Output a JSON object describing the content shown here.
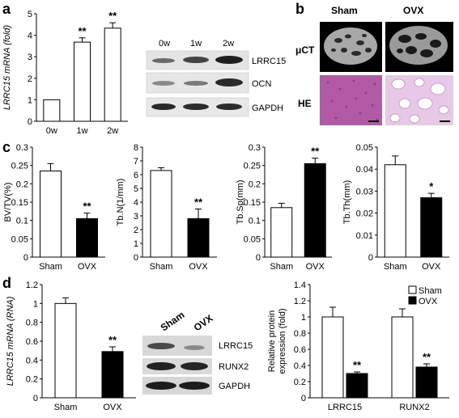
{
  "panel_letters": {
    "a": "a",
    "b": "b",
    "c": "c",
    "d": "d"
  },
  "panel_b": {
    "columns": [
      "Sham",
      "OVX"
    ],
    "rows": [
      "μCT",
      "HE"
    ]
  },
  "blot_a": {
    "timepoints": [
      "0w",
      "1w",
      "2w"
    ],
    "proteins": [
      "LRRC15",
      "OCN",
      "GAPDH"
    ]
  },
  "blot_d": {
    "lanes": [
      "Sham",
      "OVX"
    ],
    "proteins": [
      "LRRC15",
      "RUNX2",
      "GAPDH"
    ]
  },
  "colors": {
    "white_bar": "#ffffff",
    "black_bar": "#000000",
    "he_tissue": "#b25aa6",
    "he_background": "#e7c8e7"
  },
  "chart_data": [
    {
      "id": "a",
      "type": "bar",
      "categories": [
        "0w",
        "1w",
        "2w"
      ],
      "values": [
        1.0,
        3.68,
        4.33
      ],
      "errors": [
        0.0,
        0.2,
        0.25
      ],
      "significance": [
        "",
        "**",
        "**"
      ],
      "ylabel": "LRRC15 mRNA (fold)",
      "ylim": [
        0,
        5
      ],
      "yticks": [
        0,
        1,
        2,
        3,
        4,
        5
      ],
      "bar_colors": [
        "#ffffff",
        "#ffffff",
        "#ffffff"
      ]
    },
    {
      "id": "c1",
      "type": "bar",
      "categories": [
        "Sham",
        "OVX"
      ],
      "values": [
        0.235,
        0.105
      ],
      "errors": [
        0.02,
        0.015
      ],
      "significance": [
        "",
        "**"
      ],
      "ylabel": "BV/TV(%)",
      "ylim": [
        0,
        0.3
      ],
      "yticks": [
        0,
        0.05,
        0.1,
        0.15,
        0.2,
        0.25,
        0.3
      ],
      "bar_colors": [
        "#ffffff",
        "#000000"
      ]
    },
    {
      "id": "c2",
      "type": "bar",
      "categories": [
        "Sham",
        "OVX"
      ],
      "values": [
        6.3,
        2.8
      ],
      "errors": [
        0.2,
        0.7
      ],
      "significance": [
        "",
        "**"
      ],
      "ylabel": "Tb.N(1/mm)",
      "ylim": [
        0,
        8
      ],
      "yticks": [
        0,
        1,
        2,
        3,
        4,
        5,
        6,
        7,
        8
      ],
      "bar_colors": [
        "#ffffff",
        "#000000"
      ]
    },
    {
      "id": "c3",
      "type": "bar",
      "categories": [
        "Sham",
        "OVX"
      ],
      "values": [
        0.135,
        0.255
      ],
      "errors": [
        0.012,
        0.015
      ],
      "significance": [
        "",
        "**"
      ],
      "ylabel": "Tb.Sp(mm)",
      "ylim": [
        0,
        0.3
      ],
      "yticks": [
        0,
        0.05,
        0.1,
        0.15,
        0.2,
        0.25,
        0.3
      ],
      "bar_colors": [
        "#ffffff",
        "#000000"
      ]
    },
    {
      "id": "c4",
      "type": "bar",
      "categories": [
        "Sham",
        "OVX"
      ],
      "values": [
        0.042,
        0.027
      ],
      "errors": [
        0.004,
        0.002
      ],
      "significance": [
        "",
        "*"
      ],
      "ylabel": "Tb.Th(mm)",
      "ylim": [
        0,
        0.05
      ],
      "yticks": [
        0,
        0.01,
        0.02,
        0.03,
        0.04,
        0.05
      ],
      "bar_colors": [
        "#ffffff",
        "#000000"
      ]
    },
    {
      "id": "d1",
      "type": "bar",
      "categories": [
        "Sham",
        "OVX"
      ],
      "values": [
        1.0,
        0.49
      ],
      "errors": [
        0.06,
        0.05
      ],
      "significance": [
        "",
        "**"
      ],
      "ylabel": "LRRC15 mRNA (RNA)",
      "ylim": [
        0,
        1.2
      ],
      "yticks": [
        0,
        0.2,
        0.4,
        0.6,
        0.8,
        1,
        1.2
      ],
      "bar_colors": [
        "#ffffff",
        "#000000"
      ]
    },
    {
      "id": "d2",
      "type": "bar",
      "categories": [
        "LRRC15",
        "RUNX2"
      ],
      "series": [
        {
          "name": "Sham",
          "values": [
            1.0,
            1.0
          ],
          "errors": [
            0.12,
            0.1
          ],
          "color": "#ffffff"
        },
        {
          "name": "OVX",
          "values": [
            0.3,
            0.38
          ],
          "errors": [
            0.02,
            0.04
          ],
          "color": "#000000"
        }
      ],
      "significance": [
        "**",
        "**"
      ],
      "ylabel": "Relative protein expression (fold)",
      "ylim": [
        0,
        1.4
      ],
      "yticks": [
        0,
        0.2,
        0.4,
        0.6,
        0.8,
        1,
        1.2,
        1.4
      ],
      "legend": "top-right"
    }
  ]
}
